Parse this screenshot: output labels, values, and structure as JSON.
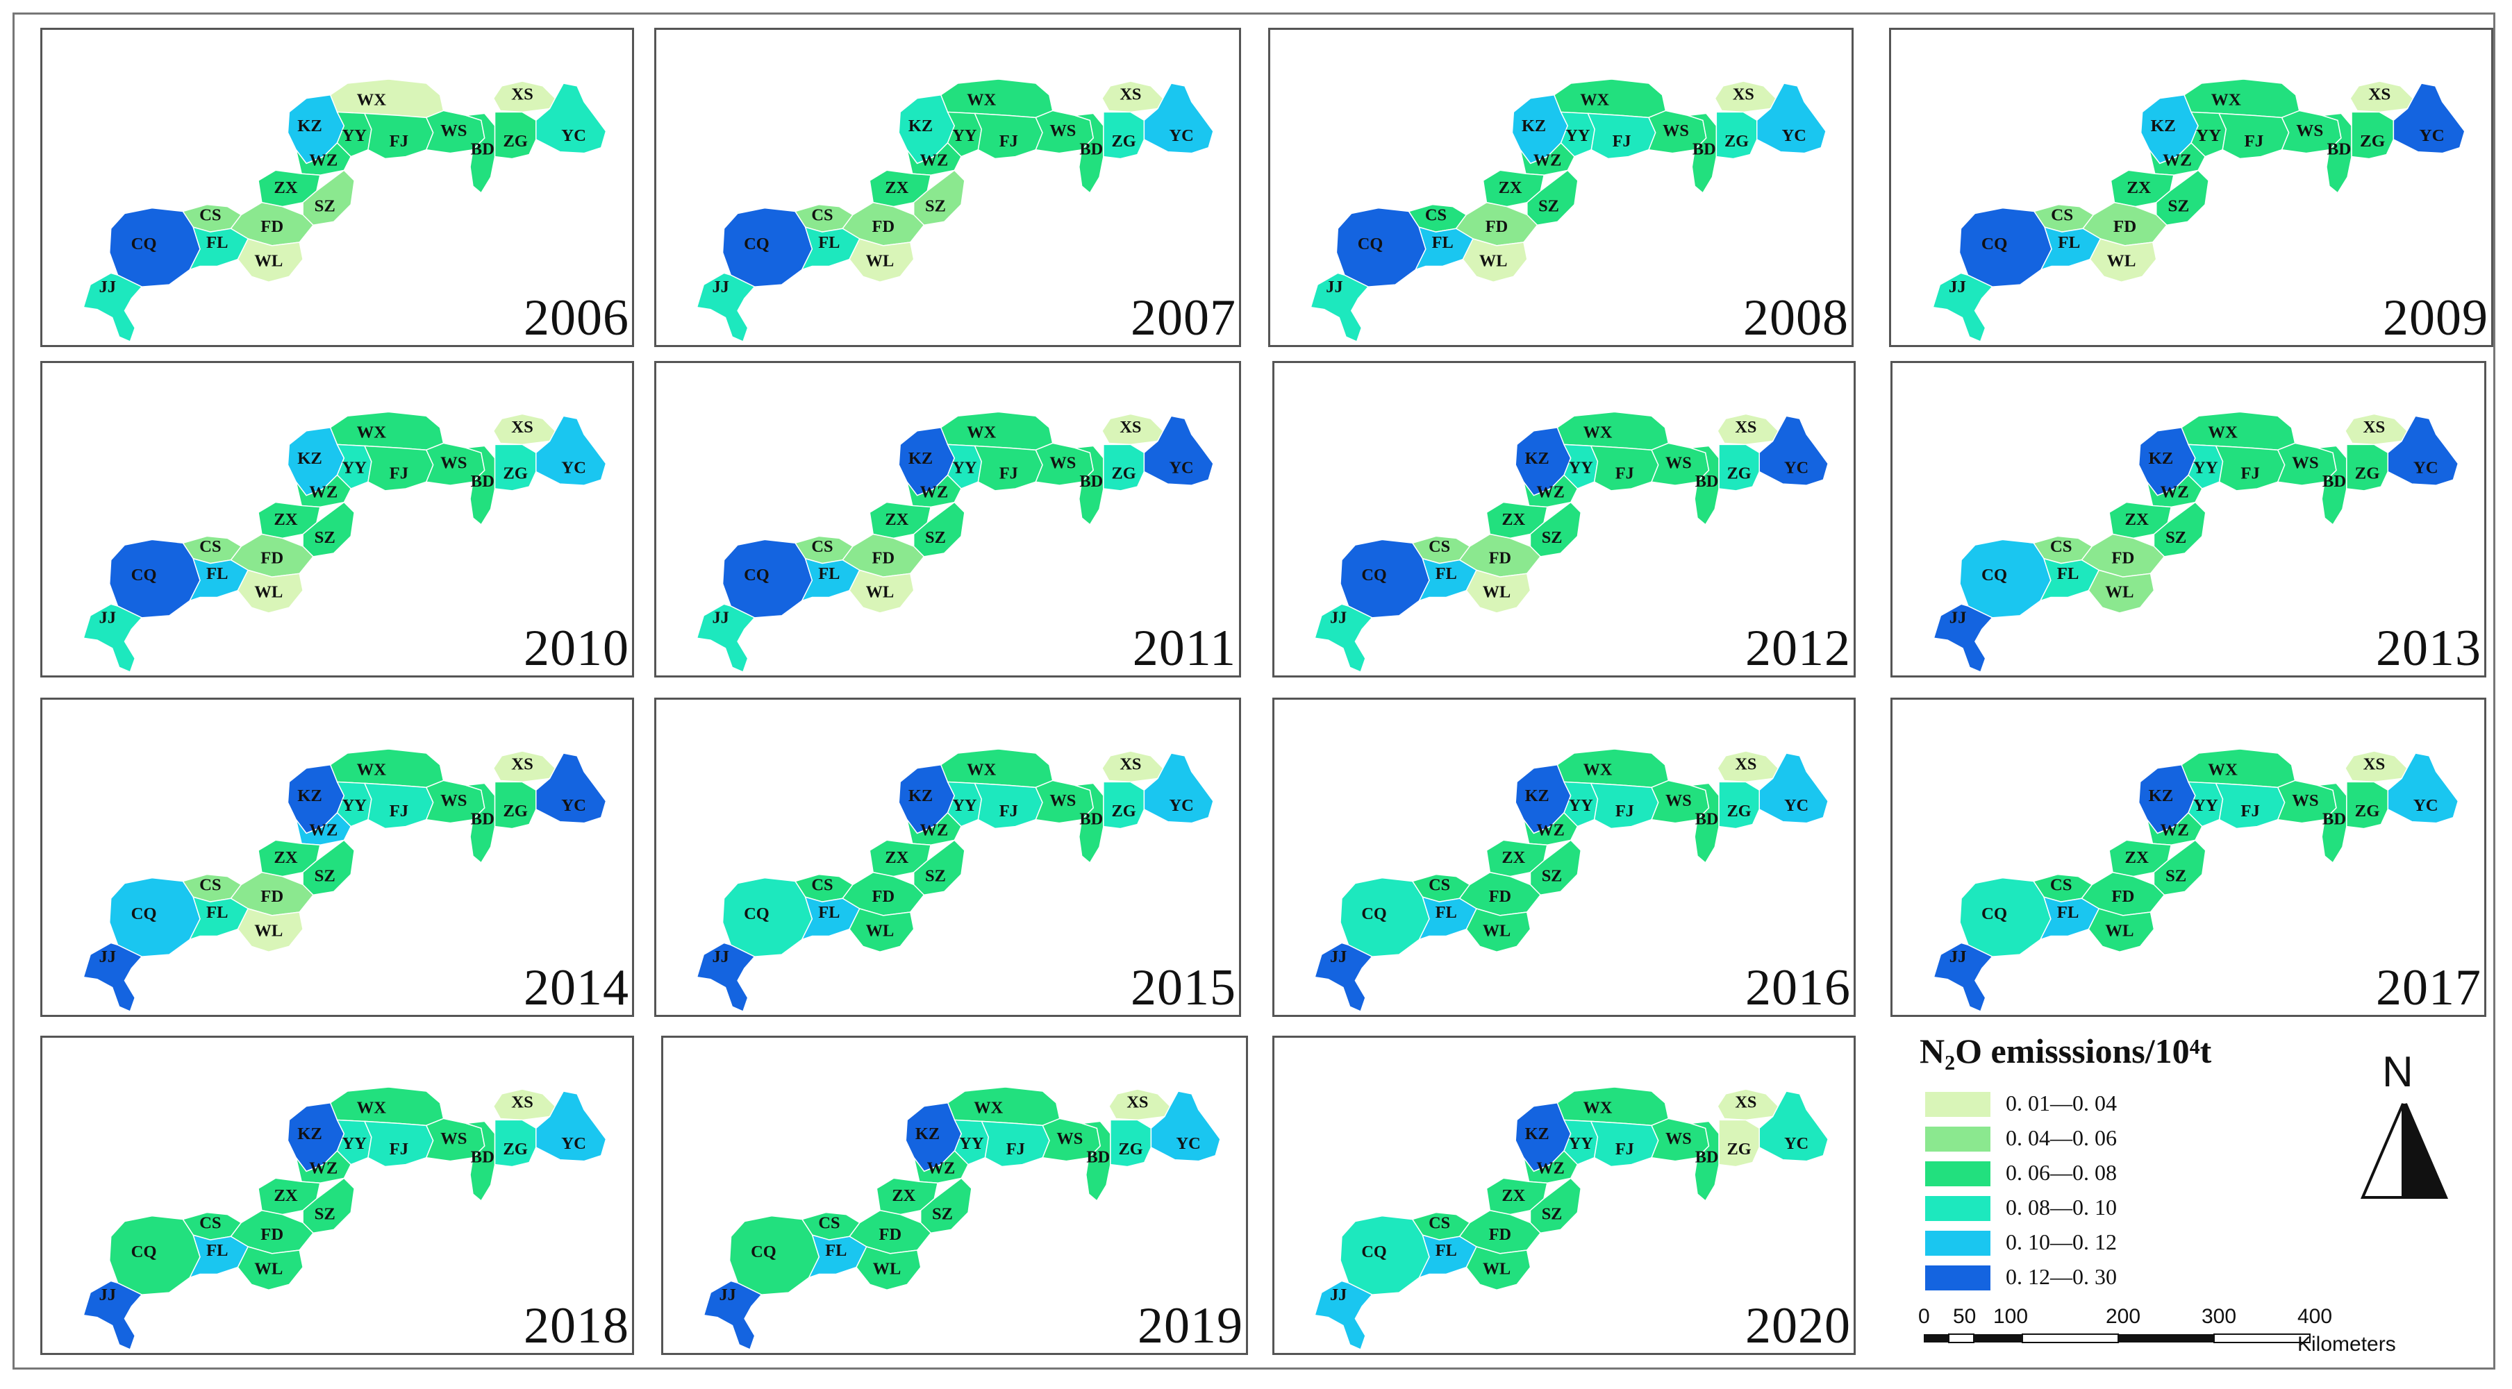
{
  "colors": {
    "c1": "#d9f5b8",
    "c2": "#8be88f",
    "c3": "#22e07e",
    "c4": "#1de8be",
    "c5": "#1ac6f0",
    "c6": "#1464e0"
  },
  "district_labels": [
    "WX",
    "XS",
    "KZ",
    "YY",
    "FJ",
    "WS",
    "BD",
    "ZG",
    "YC",
    "WZ",
    "ZX",
    "SZ",
    "CS",
    "FD",
    "CQ",
    "FL",
    "WL",
    "JJ"
  ],
  "maps": [
    {
      "year": "2006",
      "classes": {
        "WX": "c1",
        "XS": "c1",
        "KZ": "c5",
        "YY": "c3",
        "FJ": "c3",
        "WS": "c3",
        "BD": "c3",
        "ZG": "c3",
        "YC": "c4",
        "WZ": "c3",
        "ZX": "c3",
        "SZ": "c2",
        "CS": "c2",
        "FD": "c2",
        "CQ": "c6",
        "FL": "c4",
        "WL": "c1",
        "JJ": "c4"
      }
    },
    {
      "year": "2007",
      "classes": {
        "WX": "c3",
        "XS": "c1",
        "KZ": "c4",
        "YY": "c3",
        "FJ": "c3",
        "WS": "c3",
        "BD": "c3",
        "ZG": "c4",
        "YC": "c5",
        "WZ": "c3",
        "ZX": "c3",
        "SZ": "c2",
        "CS": "c2",
        "FD": "c2",
        "CQ": "c6",
        "FL": "c4",
        "WL": "c1",
        "JJ": "c4"
      }
    },
    {
      "year": "2008",
      "classes": {
        "WX": "c3",
        "XS": "c1",
        "KZ": "c5",
        "YY": "c4",
        "FJ": "c4",
        "WS": "c3",
        "BD": "c3",
        "ZG": "c4",
        "YC": "c5",
        "WZ": "c3",
        "ZX": "c3",
        "SZ": "c3",
        "CS": "c3",
        "FD": "c2",
        "CQ": "c6",
        "FL": "c5",
        "WL": "c1",
        "JJ": "c4"
      }
    },
    {
      "year": "2009",
      "classes": {
        "WX": "c3",
        "XS": "c1",
        "KZ": "c5",
        "YY": "c3",
        "FJ": "c3",
        "WS": "c3",
        "BD": "c3",
        "ZG": "c3",
        "YC": "c6",
        "WZ": "c3",
        "ZX": "c3",
        "SZ": "c3",
        "CS": "c2",
        "FD": "c2",
        "CQ": "c6",
        "FL": "c5",
        "WL": "c1",
        "JJ": "c4"
      }
    },
    {
      "year": "2010",
      "classes": {
        "WX": "c3",
        "XS": "c1",
        "KZ": "c5",
        "YY": "c4",
        "FJ": "c3",
        "WS": "c3",
        "BD": "c3",
        "ZG": "c4",
        "YC": "c5",
        "WZ": "c3",
        "ZX": "c3",
        "SZ": "c3",
        "CS": "c2",
        "FD": "c2",
        "CQ": "c6",
        "FL": "c5",
        "WL": "c1",
        "JJ": "c4"
      }
    },
    {
      "year": "2011",
      "classes": {
        "WX": "c3",
        "XS": "c1",
        "KZ": "c6",
        "YY": "c4",
        "FJ": "c3",
        "WS": "c3",
        "BD": "c3",
        "ZG": "c4",
        "YC": "c6",
        "WZ": "c3",
        "ZX": "c3",
        "SZ": "c3",
        "CS": "c2",
        "FD": "c2",
        "CQ": "c6",
        "FL": "c5",
        "WL": "c1",
        "JJ": "c4"
      }
    },
    {
      "year": "2012",
      "classes": {
        "WX": "c3",
        "XS": "c1",
        "KZ": "c6",
        "YY": "c4",
        "FJ": "c3",
        "WS": "c3",
        "BD": "c3",
        "ZG": "c4",
        "YC": "c6",
        "WZ": "c3",
        "ZX": "c3",
        "SZ": "c3",
        "CS": "c2",
        "FD": "c2",
        "CQ": "c6",
        "FL": "c5",
        "WL": "c1",
        "JJ": "c4"
      }
    },
    {
      "year": "2013",
      "classes": {
        "WX": "c3",
        "XS": "c1",
        "KZ": "c6",
        "YY": "c4",
        "FJ": "c3",
        "WS": "c3",
        "BD": "c3",
        "ZG": "c3",
        "YC": "c6",
        "WZ": "c3",
        "ZX": "c3",
        "SZ": "c3",
        "CS": "c2",
        "FD": "c2",
        "CQ": "c5",
        "FL": "c4",
        "WL": "c2",
        "JJ": "c6"
      }
    },
    {
      "year": "2014",
      "classes": {
        "WX": "c3",
        "XS": "c1",
        "KZ": "c6",
        "YY": "c4",
        "FJ": "c4",
        "WS": "c3",
        "BD": "c3",
        "ZG": "c3",
        "YC": "c6",
        "WZ": "c5",
        "ZX": "c3",
        "SZ": "c3",
        "CS": "c2",
        "FD": "c2",
        "CQ": "c5",
        "FL": "c4",
        "WL": "c1",
        "JJ": "c6"
      }
    },
    {
      "year": "2015",
      "classes": {
        "WX": "c3",
        "XS": "c1",
        "KZ": "c6",
        "YY": "c4",
        "FJ": "c4",
        "WS": "c3",
        "BD": "c3",
        "ZG": "c4",
        "YC": "c5",
        "WZ": "c3",
        "ZX": "c3",
        "SZ": "c3",
        "CS": "c3",
        "FD": "c3",
        "CQ": "c4",
        "FL": "c5",
        "WL": "c3",
        "JJ": "c6"
      }
    },
    {
      "year": "2016",
      "classes": {
        "WX": "c3",
        "XS": "c1",
        "KZ": "c6",
        "YY": "c4",
        "FJ": "c4",
        "WS": "c3",
        "BD": "c3",
        "ZG": "c4",
        "YC": "c5",
        "WZ": "c3",
        "ZX": "c3",
        "SZ": "c3",
        "CS": "c3",
        "FD": "c3",
        "CQ": "c4",
        "FL": "c5",
        "WL": "c3",
        "JJ": "c6"
      }
    },
    {
      "year": "2017",
      "classes": {
        "WX": "c3",
        "XS": "c1",
        "KZ": "c6",
        "YY": "c4",
        "FJ": "c4",
        "WS": "c3",
        "BD": "c3",
        "ZG": "c3",
        "YC": "c5",
        "WZ": "c3",
        "ZX": "c3",
        "SZ": "c3",
        "CS": "c3",
        "FD": "c3",
        "CQ": "c4",
        "FL": "c5",
        "WL": "c3",
        "JJ": "c6"
      }
    },
    {
      "year": "2018",
      "classes": {
        "WX": "c3",
        "XS": "c1",
        "KZ": "c6",
        "YY": "c4",
        "FJ": "c4",
        "WS": "c3",
        "BD": "c3",
        "ZG": "c4",
        "YC": "c5",
        "WZ": "c3",
        "ZX": "c3",
        "SZ": "c3",
        "CS": "c3",
        "FD": "c3",
        "CQ": "c3",
        "FL": "c5",
        "WL": "c3",
        "JJ": "c6"
      }
    },
    {
      "year": "2019",
      "classes": {
        "WX": "c3",
        "XS": "c1",
        "KZ": "c6",
        "YY": "c4",
        "FJ": "c4",
        "WS": "c3",
        "BD": "c3",
        "ZG": "c4",
        "YC": "c5",
        "WZ": "c3",
        "ZX": "c3",
        "SZ": "c3",
        "CS": "c3",
        "FD": "c3",
        "CQ": "c3",
        "FL": "c5",
        "WL": "c3",
        "JJ": "c6"
      }
    },
    {
      "year": "2020",
      "classes": {
        "WX": "c3",
        "XS": "c1",
        "KZ": "c6",
        "YY": "c4",
        "FJ": "c4",
        "WS": "c3",
        "BD": "c3",
        "ZG": "c1",
        "YC": "c4",
        "WZ": "c3",
        "ZX": "c3",
        "SZ": "c3",
        "CS": "c3",
        "FD": "c3",
        "CQ": "c4",
        "FL": "c5",
        "WL": "c3",
        "JJ": "c5"
      }
    }
  ],
  "legend": {
    "title": "N₂O emisssions/10⁴t",
    "items": [
      {
        "label": "0. 01—0. 04",
        "color": "#d9f5b8"
      },
      {
        "label": "0. 04—0. 06",
        "color": "#8be88f"
      },
      {
        "label": "0. 06—0. 08",
        "color": "#22e07e"
      },
      {
        "label": "0. 08—0. 10",
        "color": "#1de8be"
      },
      {
        "label": "0. 10—0. 12",
        "color": "#1ac6f0"
      },
      {
        "label": "0. 12—0. 30",
        "color": "#1464e0"
      }
    ]
  },
  "north_arrow": {
    "letter": "N"
  },
  "scale_bar": {
    "ticks": [
      "0",
      "50",
      "100",
      "200",
      "300",
      "400"
    ],
    "unit": "Kilometers"
  }
}
